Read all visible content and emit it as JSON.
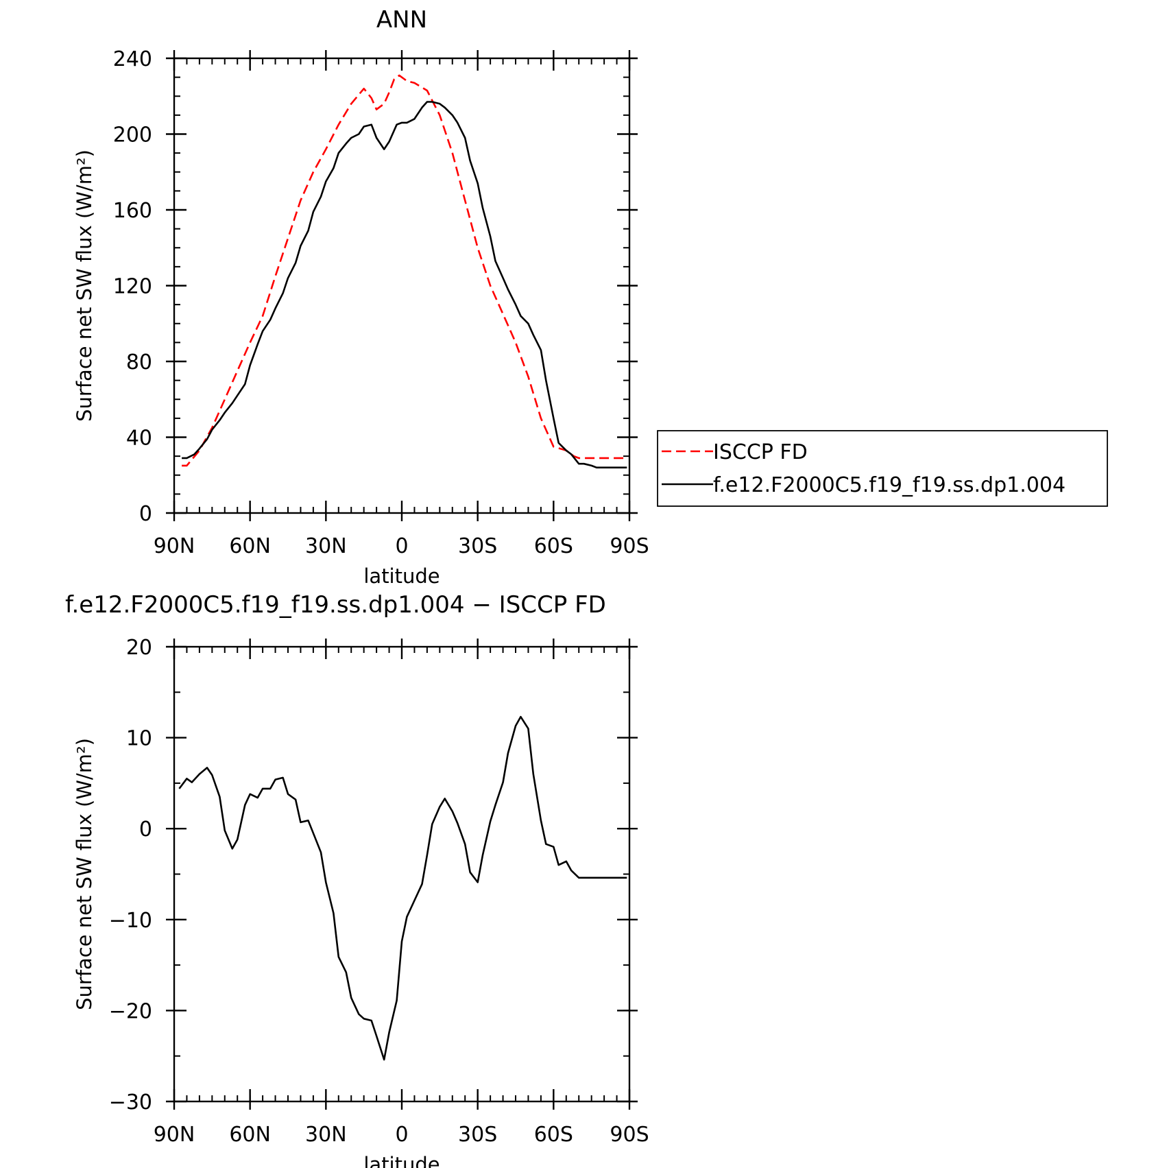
{
  "chart_data": [
    {
      "type": "line",
      "title": "ANN",
      "xlabel": "latitude",
      "ylabel": "Surface net SW flux (W/m²)",
      "xlim": [
        90,
        -90
      ],
      "ylim": [
        0,
        240
      ],
      "x_ticks": [
        90,
        60,
        30,
        0,
        -30,
        -60,
        -90
      ],
      "x_tick_labels": [
        "90N",
        "60N",
        "30N",
        "0",
        "30S",
        "60S",
        "90S"
      ],
      "y_ticks": [
        0,
        40,
        80,
        120,
        160,
        200,
        240
      ],
      "y_tick_labels": [
        "0",
        "40",
        "80",
        "120",
        "160",
        "200",
        "240"
      ],
      "legend_position": "right",
      "series": [
        {
          "name": "ISCCP FD",
          "color": "#ff0000",
          "dash": "dashed",
          "x": [
            87,
            85,
            80,
            75,
            70,
            65,
            60,
            55,
            50,
            45,
            40,
            35,
            30,
            25,
            20,
            15,
            12,
            10,
            7,
            5,
            3,
            1,
            -2,
            -5,
            -10,
            -15,
            -20,
            -25,
            -30,
            -35,
            -40,
            -45,
            -50,
            -55,
            -60,
            -65,
            -68,
            -70,
            -72,
            -75,
            -80,
            -85,
            -89
          ],
          "y": [
            25,
            25,
            33,
            45,
            60,
            75,
            90,
            104,
            125,
            145,
            165,
            180,
            192,
            205,
            216,
            224,
            219,
            213,
            216,
            222,
            229,
            231,
            228,
            227,
            223,
            210,
            190,
            165,
            140,
            120,
            105,
            90,
            72,
            50,
            35,
            33,
            30,
            29,
            29,
            29,
            29,
            29,
            29
          ],
          "note_unused": ""
        },
        {
          "name": "f.e12.F2000C5.f19_f19.ss.dp1.004",
          "color": "#000000",
          "dash": "solid",
          "x": [
            87,
            85,
            82,
            80,
            77,
            75,
            72,
            70,
            67,
            65,
            62,
            60,
            57,
            55,
            52,
            50,
            47,
            45,
            42,
            40,
            37,
            35,
            32,
            30,
            27,
            25,
            22,
            20,
            17,
            15,
            12,
            10,
            7,
            5,
            2,
            0,
            -2,
            -5,
            -8,
            -10,
            -12,
            -15,
            -17,
            -20,
            -22,
            -25,
            -27,
            -30,
            -32,
            -35,
            -37,
            -40,
            -42,
            -45,
            -47,
            -50,
            -52,
            -55,
            -57,
            -60,
            -62,
            -65,
            -67,
            -70,
            -72,
            -75,
            -77,
            -80,
            -82,
            -85,
            -87,
            -89
          ],
          "y": [
            29,
            29,
            31,
            34,
            39,
            44,
            49,
            53,
            58,
            62,
            68,
            78,
            89,
            96,
            102,
            108,
            116,
            124,
            132,
            141,
            149,
            159,
            167,
            175,
            182,
            190,
            195,
            198,
            200,
            204,
            205,
            198,
            192,
            196,
            205,
            206,
            206,
            208,
            214,
            217,
            217,
            216,
            214,
            210,
            206,
            198,
            186,
            174,
            161,
            146,
            133,
            124,
            118,
            110,
            104,
            100,
            94,
            86,
            70,
            50,
            37,
            33,
            31,
            26,
            26,
            25,
            24,
            24,
            24,
            24,
            24,
            24
          ]
        }
      ]
    },
    {
      "type": "line",
      "title": "f.e12.F2000C5.f19_f19.ss.dp1.004 − ISCCP FD",
      "xlabel": "latitude",
      "ylabel": "Surface net SW flux (W/m²)",
      "xlim": [
        90,
        -90
      ],
      "ylim": [
        -30,
        20
      ],
      "x_ticks": [
        90,
        60,
        30,
        0,
        -30,
        -60,
        -90
      ],
      "x_tick_labels": [
        "90N",
        "60N",
        "30N",
        "0",
        "30S",
        "60S",
        "90S"
      ],
      "y_ticks": [
        -30,
        -20,
        -10,
        0,
        10,
        20
      ],
      "y_tick_labels": [
        "−30",
        "−20",
        "−10",
        "0",
        "10",
        "20"
      ],
      "series": [
        {
          "color": "#000000",
          "dash": "solid",
          "x": [
            88,
            85,
            83,
            80,
            77,
            75,
            72,
            70,
            67,
            65,
            62,
            60,
            57,
            55,
            52,
            50,
            47,
            45,
            42,
            40,
            37,
            35,
            32,
            30,
            27,
            25,
            22,
            20,
            17,
            15,
            12,
            10,
            7,
            5,
            2,
            0,
            -2,
            -5,
            -8,
            -10,
            -12,
            -15,
            -17,
            -20,
            -22,
            -25,
            -27,
            -30,
            -32,
            -35,
            -37,
            -40,
            -42,
            -45,
            -47,
            -50,
            -52,
            -55,
            -57,
            -60,
            -62,
            -65,
            -67,
            -70,
            -72,
            -75,
            -77,
            -80,
            -82,
            -85,
            -87,
            -89
          ],
          "y": [
            4.4,
            5.5,
            5.1,
            6.0,
            6.7,
            5.9,
            3.5,
            -0.2,
            -2.2,
            -1.2,
            2.6,
            3.8,
            3.4,
            4.4,
            4.4,
            5.4,
            5.6,
            3.8,
            3.2,
            0.7,
            0.9,
            -0.5,
            -2.6,
            -5.9,
            -9.3,
            -14.1,
            -15.8,
            -18.6,
            -20.4,
            -20.9,
            -21.1,
            -22.8,
            -25.4,
            -22.4,
            -18.9,
            -12.4,
            -9.7,
            -7.9,
            -6.1,
            -2.9,
            0.5,
            2.4,
            3.3,
            1.9,
            0.6,
            -1.7,
            -4.8,
            -5.9,
            -2.9,
            0.8,
            2.6,
            5.1,
            8.3,
            11.3,
            12.3,
            11.0,
            6.0,
            0.9,
            -1.7,
            -2.0,
            -4.0,
            -3.6,
            -4.6,
            -5.4,
            -5.4,
            -5.4,
            -5.4,
            -5.4,
            -5.4,
            -5.4,
            -5.4,
            -5.4
          ]
        }
      ]
    }
  ]
}
